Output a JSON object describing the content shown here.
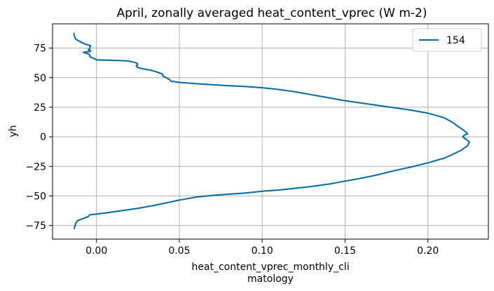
{
  "chart_data": {
    "type": "line",
    "title": "April, zonally averaged heat_content_vprec (W m-2)",
    "xlabel_lines": [
      "heat_content_vprec_monthly_cli",
      "matology"
    ],
    "ylabel": "yh",
    "xlim": [
      -0.0265,
      0.2365
    ],
    "ylim": [
      -86.5,
      95.5
    ],
    "xticks": [
      0.0,
      0.05,
      0.1,
      0.15,
      0.2
    ],
    "xtick_labels": [
      "0.00",
      "0.05",
      "0.10",
      "0.15",
      "0.20"
    ],
    "yticks": [
      -75,
      -50,
      -25,
      0,
      25,
      50,
      75
    ],
    "ytick_labels": [
      "−75",
      "−50",
      "−25",
      "0",
      "25",
      "50",
      "75"
    ],
    "grid": true,
    "legend_position": "top-right",
    "colors": {
      "series": "#0068a8",
      "grid": "#b0b0b0"
    },
    "series": [
      {
        "name": "154",
        "points": [
          [
            -0.0135,
            -78.0
          ],
          [
            -0.0125,
            -73.0
          ],
          [
            -0.0115,
            -71.0
          ],
          [
            -0.008,
            -69.0
          ],
          [
            -0.005,
            -67.5
          ],
          [
            -0.004,
            -66.0
          ],
          [
            0.005,
            -64.5
          ],
          [
            0.015,
            -62.5
          ],
          [
            0.025,
            -60.5
          ],
          [
            0.035,
            -58.0
          ],
          [
            0.04,
            -56.5
          ],
          [
            0.045,
            -55.0
          ],
          [
            0.05,
            -53.5
          ],
          [
            0.055,
            -52.3
          ],
          [
            0.06,
            -51.0
          ],
          [
            0.07,
            -49.5
          ],
          [
            0.08,
            -48.5
          ],
          [
            0.09,
            -47.5
          ],
          [
            0.1,
            -46.0
          ],
          [
            0.11,
            -45.0
          ],
          [
            0.12,
            -43.5
          ],
          [
            0.13,
            -42.0
          ],
          [
            0.14,
            -40.0
          ],
          [
            0.15,
            -37.5
          ],
          [
            0.16,
            -35.0
          ],
          [
            0.17,
            -32.0
          ],
          [
            0.18,
            -28.5
          ],
          [
            0.19,
            -25.5
          ],
          [
            0.2,
            -22.0
          ],
          [
            0.21,
            -18.0
          ],
          [
            0.22,
            -11.5
          ],
          [
            0.224,
            -7.5
          ],
          [
            0.225,
            -4.5
          ],
          [
            0.223,
            -2.0
          ],
          [
            0.221,
            0.0
          ],
          [
            0.222,
            1.5
          ],
          [
            0.224,
            2.5
          ],
          [
            0.223,
            4.0
          ],
          [
            0.22,
            7.0
          ],
          [
            0.215,
            12.0
          ],
          [
            0.21,
            16.0
          ],
          [
            0.2,
            20.0
          ],
          [
            0.19,
            22.5
          ],
          [
            0.18,
            24.5
          ],
          [
            0.17,
            26.5
          ],
          [
            0.16,
            28.5
          ],
          [
            0.15,
            30.5
          ],
          [
            0.14,
            33.0
          ],
          [
            0.13,
            35.5
          ],
          [
            0.12,
            38.0
          ],
          [
            0.11,
            40.0
          ],
          [
            0.1,
            41.5
          ],
          [
            0.09,
            42.5
          ],
          [
            0.08,
            43.2
          ],
          [
            0.07,
            44.0
          ],
          [
            0.06,
            45.0
          ],
          [
            0.05,
            46.0
          ],
          [
            0.045,
            47.0
          ],
          [
            0.044,
            48.5
          ],
          [
            0.042,
            50.0
          ],
          [
            0.04,
            51.5
          ],
          [
            0.04,
            53.0
          ],
          [
            0.038,
            54.0
          ],
          [
            0.035,
            55.5
          ],
          [
            0.032,
            56.5
          ],
          [
            0.028,
            57.5
          ],
          [
            0.025,
            58.5
          ],
          [
            0.024,
            60.0
          ],
          [
            0.025,
            61.5
          ],
          [
            0.024,
            62.5
          ],
          [
            0.022,
            63.3
          ],
          [
            0.02,
            63.8
          ],
          [
            0.018,
            64.2
          ],
          [
            0.01,
            64.6
          ],
          [
            0.0,
            65.0
          ],
          [
            -0.001,
            66.0
          ],
          [
            -0.003,
            67.0
          ],
          [
            -0.004,
            68.0
          ],
          [
            -0.004,
            69.5
          ],
          [
            -0.006,
            70.5
          ],
          [
            -0.008,
            71.5
          ],
          [
            -0.004,
            72.0
          ],
          [
            -0.0035,
            73.0
          ],
          [
            -0.005,
            73.5
          ],
          [
            -0.004,
            74.5
          ],
          [
            -0.004,
            75.5
          ],
          [
            -0.0035,
            77.0
          ],
          [
            -0.007,
            78.5
          ],
          [
            -0.01,
            80.5
          ],
          [
            -0.0125,
            82.5
          ],
          [
            -0.013,
            84.0
          ],
          [
            -0.0135,
            86.0
          ],
          [
            -0.0135,
            88.0
          ]
        ]
      }
    ]
  }
}
